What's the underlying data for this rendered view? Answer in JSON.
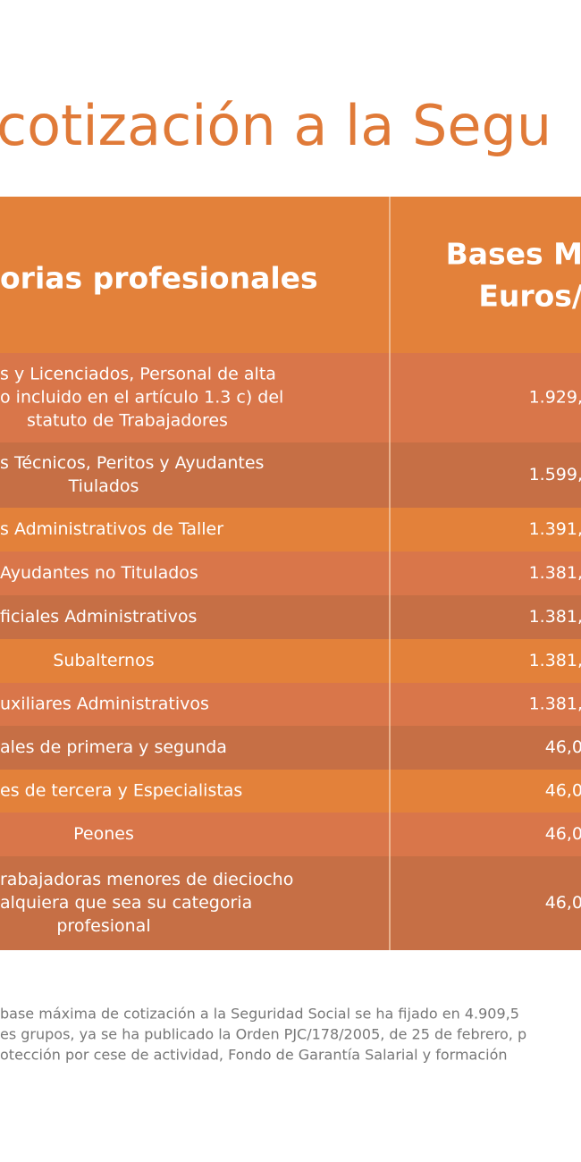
{
  "title": "cotización a la Segu",
  "table": {
    "header": {
      "category": "orias profesionales",
      "bases": [
        "Bases M",
        "Euros/"
      ]
    },
    "rows": [
      {
        "category": [
          "s y Licenciados, Personal de alta",
          "o incluido en el artículo 1.3 c) del",
          "statuto de Trabajadores"
        ],
        "base": "1.929,"
      },
      {
        "category": [
          "s Técnicos, Peritos y Ayudantes",
          "Tiulados"
        ],
        "base": "1.599,"
      },
      {
        "category": [
          "s Administrativos de Taller"
        ],
        "base": "1.391,"
      },
      {
        "category": [
          "Ayudantes no Titulados"
        ],
        "base": "1.381,"
      },
      {
        "category": [
          "ficiales Administrativos"
        ],
        "base": "1.381,"
      },
      {
        "category": [
          "Subalternos"
        ],
        "base": "1.381,"
      },
      {
        "category": [
          "uxiliares Administrativos"
        ],
        "base": "1.381,"
      },
      {
        "category": [
          "ales de primera y segunda"
        ],
        "base": "46,0"
      },
      {
        "category": [
          "es de tercera y Especialistas"
        ],
        "base": "46,0"
      },
      {
        "category": [
          "Peones"
        ],
        "base": "46,0"
      },
      {
        "category": [
          "rabajadoras menores de dieciocho",
          "alquiera que sea su categoria",
          "profesional"
        ],
        "base": "46,0"
      }
    ]
  },
  "footnote": [
    "base máxima de cotización a la Seguridad Social se ha fijado en 4.909,5",
    "es grupos, ya se ha publicado la Orden PJC/178/2005, de 25 de febrero, p",
    "otección por cese de actividad, Fondo de Garantía Salarial y formación"
  ]
}
